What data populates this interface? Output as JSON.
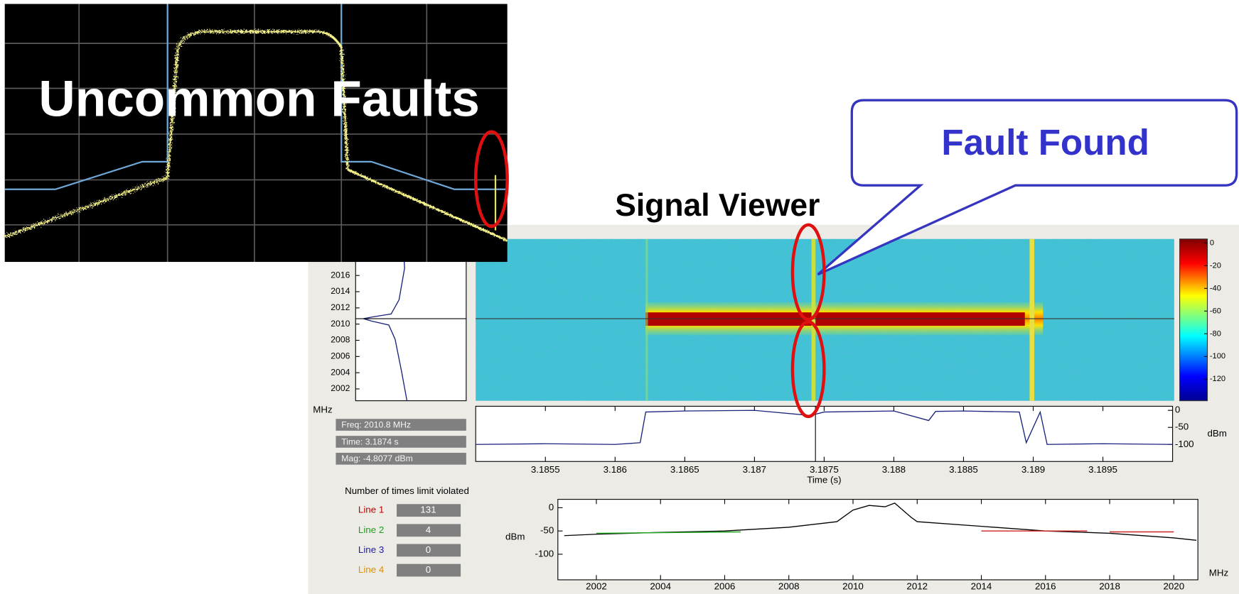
{
  "title": "Uncommon Faults",
  "viewer_title": "Signal Viewer",
  "callout": "Fault Found",
  "freq_axis": {
    "label": "MHz",
    "ylim": [
      2000.54,
      2020.5
    ],
    "yticks": [
      2002,
      2004,
      2006,
      2008,
      2010,
      2012,
      2014,
      2016
    ]
  },
  "colorbar": {
    "ylim": [
      3.5,
      -139
    ],
    "yticks": [
      0,
      -20,
      -40,
      -60,
      -80,
      -100,
      -120
    ]
  },
  "readouts": [
    "Freq: 2010.8 MHz",
    "Time: 3.1874 s",
    "Mag: -4.8077 dBm"
  ],
  "time_plot": {
    "xlabel": "Time (s)",
    "ylabel": "dBm",
    "xlim": [
      3.185,
      3.19
    ],
    "ylim": [
      -150,
      12
    ],
    "xticks": [
      3.1855,
      3.186,
      3.1865,
      3.187,
      3.1875,
      3.188,
      3.1885,
      3.189,
      3.1895
    ],
    "yticks": [
      0,
      -50,
      -100
    ],
    "trace": {
      "x": [
        3.185,
        3.1855,
        3.186,
        3.18618,
        3.18622,
        3.1865,
        3.187,
        3.1874,
        3.1875,
        3.188,
        3.18825,
        3.1883,
        3.1885,
        3.1889,
        3.18895,
        3.18905,
        3.1891,
        3.1895,
        3.19
      ],
      "y": [
        -100,
        -98,
        -100,
        -95,
        -5,
        -2,
        0,
        -15,
        -5,
        -2,
        -30,
        -3,
        -2,
        -5,
        -95,
        -5,
        -100,
        -98,
        -100
      ]
    }
  },
  "limit_violations": {
    "heading": "Number of times limit violated",
    "lines": [
      {
        "name": "Line 1",
        "count": 131,
        "color": "#c00000"
      },
      {
        "name": "Line 2",
        "count": 4,
        "color": "#20a020"
      },
      {
        "name": "Line 3",
        "count": 0,
        "color": "#2020a0"
      },
      {
        "name": "Line 4",
        "count": 0,
        "color": "#e09000"
      }
    ]
  },
  "spectrum_plot": {
    "xlabel": "MHz",
    "ylabel": "dBm",
    "xlim": [
      2000.8,
      2020.75
    ],
    "ylim": [
      -155,
      18
    ],
    "xticks": [
      2002,
      2004,
      2006,
      2008,
      2010,
      2012,
      2014,
      2016,
      2018,
      2020
    ],
    "yticks": [
      0,
      -50,
      -100
    ],
    "trace": {
      "x": [
        2001,
        2002,
        2004,
        2006,
        2008,
        2009.5,
        2010,
        2010.5,
        2011,
        2011.3,
        2011.8,
        2012,
        2014,
        2016,
        2018,
        2020,
        2020.7
      ],
      "y": [
        -60,
        -57,
        -53,
        -50,
        -42,
        -30,
        -5,
        5,
        2,
        10,
        -20,
        -30,
        -40,
        -50,
        -55,
        -65,
        -70
      ]
    },
    "limit_lines": [
      {
        "color": "#22aa22",
        "x": [
          2002,
          2006.5
        ],
        "y": [
          -55,
          -52
        ]
      },
      {
        "color": "#cc2222",
        "x": [
          2014,
          2017.3
        ],
        "y": [
          -50,
          -50
        ]
      },
      {
        "color": "#cc2222",
        "x": [
          2018,
          2020
        ],
        "y": [
          -52,
          -52
        ]
      }
    ]
  }
}
